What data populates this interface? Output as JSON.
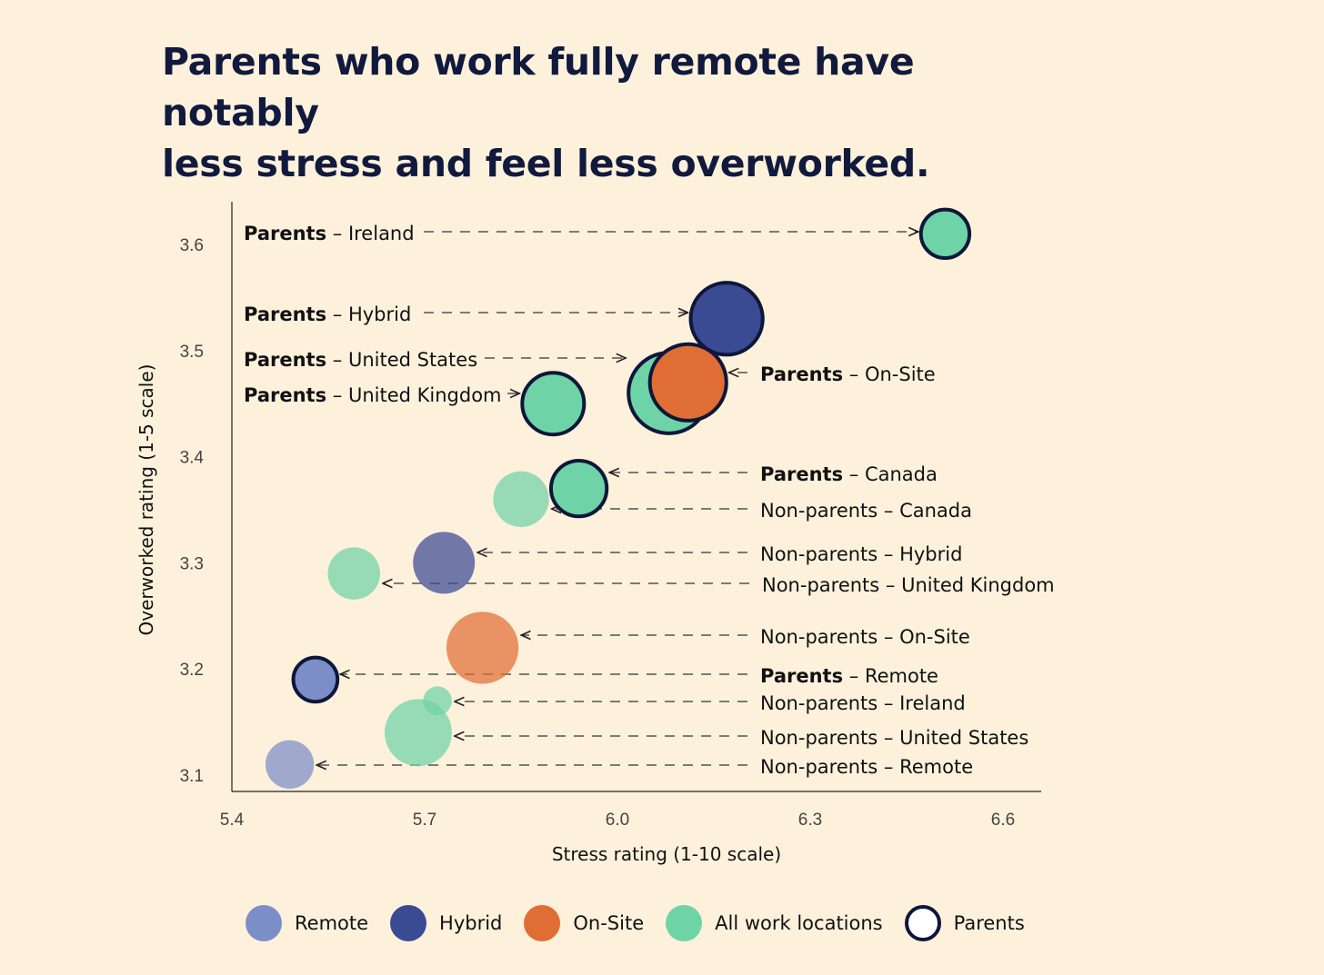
{
  "title_lines": [
    "Parents who work fully remote have notably",
    "less stress and feel less overworked."
  ],
  "chart_data": {
    "type": "scatter",
    "title": "Parents who work fully remote have notably less stress and feel less overworked.",
    "xlabel": "Stress rating (1-10 scale)",
    "ylabel": "Overworked rating (1-5 scale)",
    "xlim": [
      5.4,
      6.66
    ],
    "ylim": [
      3.085,
      3.63
    ],
    "xticks": [
      "5.4",
      "5.7",
      "6.0",
      "6.3",
      "6.6"
    ],
    "yticks": [
      "3.1",
      "3.2",
      "3.3",
      "3.4",
      "3.5",
      "3.6"
    ],
    "grid": false,
    "legend_position": "bottom",
    "colors": {
      "Remote": "#7b8ec8",
      "Hybrid": "#3a4a93",
      "On-Site": "#e06e34",
      "All work locations": "#6ed3a6",
      "parent_outline": "#0e1739"
    },
    "points": [
      {
        "group": "Parents",
        "name": "Ireland",
        "category": "All work locations",
        "parent": true,
        "x": 6.51,
        "y": 3.61,
        "size": 2
      },
      {
        "group": "Parents",
        "name": "Hybrid",
        "category": "Hybrid",
        "parent": true,
        "x": 6.17,
        "y": 3.53,
        "size": 6
      },
      {
        "group": "Parents",
        "name": "United States",
        "category": "All work locations",
        "parent": true,
        "x": 6.08,
        "y": 3.46,
        "size": 8
      },
      {
        "group": "Parents",
        "name": "On-Site",
        "category": "On-Site",
        "parent": true,
        "x": 6.11,
        "y": 3.47,
        "size": 7
      },
      {
        "group": "Parents",
        "name": "United Kingdom",
        "category": "All work locations",
        "parent": true,
        "x": 5.9,
        "y": 3.45,
        "size": 4
      },
      {
        "group": "Parents",
        "name": "Canada",
        "category": "All work locations",
        "parent": true,
        "x": 5.94,
        "y": 3.37,
        "size": 3
      },
      {
        "group": "Non-parents",
        "name": "Canada",
        "category": "All work locations",
        "parent": false,
        "x": 5.85,
        "y": 3.36,
        "size": 3
      },
      {
        "group": "Non-parents",
        "name": "Hybrid",
        "category": "Hybrid",
        "parent": false,
        "x": 5.73,
        "y": 3.3,
        "size": 4
      },
      {
        "group": "Non-parents",
        "name": "United Kingdom",
        "category": "All work locations",
        "parent": false,
        "x": 5.59,
        "y": 3.29,
        "size": 2.5
      },
      {
        "group": "Non-parents",
        "name": "On-Site",
        "category": "On-Site",
        "parent": false,
        "x": 5.79,
        "y": 3.22,
        "size": 6
      },
      {
        "group": "Parents",
        "name": "Remote",
        "category": "Remote",
        "parent": true,
        "x": 5.53,
        "y": 3.19,
        "size": 1.5
      },
      {
        "group": "Non-parents",
        "name": "Ireland",
        "category": "All work locations",
        "parent": false,
        "x": 5.72,
        "y": 3.17,
        "size": 0.3
      },
      {
        "group": "Non-parents",
        "name": "United States",
        "category": "All work locations",
        "parent": false,
        "x": 5.69,
        "y": 3.14,
        "size": 5
      },
      {
        "group": "Non-parents",
        "name": "Remote",
        "category": "Remote",
        "parent": false,
        "x": 5.49,
        "y": 3.11,
        "size": 2
      }
    ]
  },
  "legend": [
    {
      "label": "Remote",
      "color": "#7b8ec8",
      "outline": false
    },
    {
      "label": "Hybrid",
      "color": "#3a4a93",
      "outline": false
    },
    {
      "label": "On-Site",
      "color": "#e06e34",
      "outline": false
    },
    {
      "label": "All work locations",
      "color": "#6ed3a6",
      "outline": false
    },
    {
      "label": "Parents",
      "color": "#ffffff",
      "outline": true
    }
  ]
}
